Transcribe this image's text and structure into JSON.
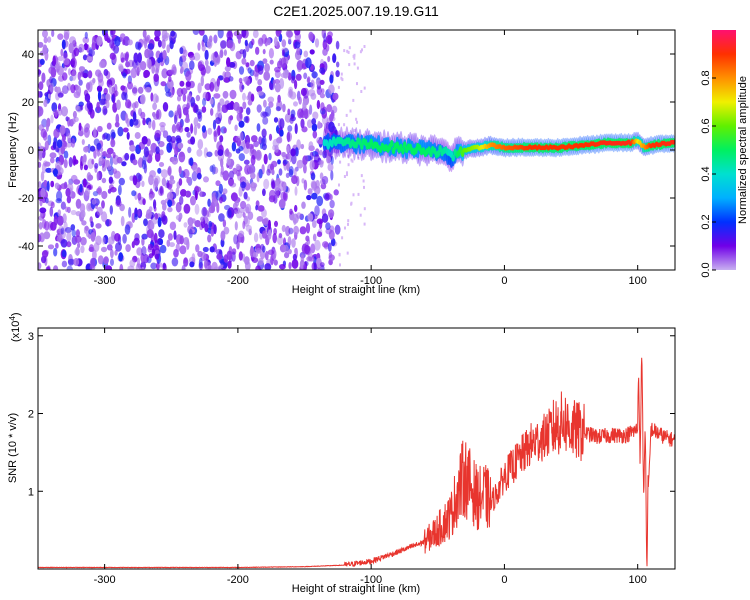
{
  "title": "C2E1.2025.007.19.19.G11",
  "colors": {
    "noise_purple": "#7a2df0",
    "noise_light": "#d8b8f8",
    "signal_red": "#e8352e",
    "snr_line": "#e8352e"
  },
  "spectrogram": {
    "xlabel": "Height of straight line (km)",
    "ylabel": "Frequency (Hz)",
    "xticks": [
      "-300",
      "-200",
      "-100",
      "0",
      "100"
    ],
    "yticks": [
      "40",
      "20",
      "0",
      "-20",
      "-40"
    ],
    "colorbar_label": "Normalized spectral amplitude",
    "colorbar_ticks": [
      "0.8",
      "0.6",
      "0.4",
      "0.2",
      "0.0"
    ],
    "colorbar_stops": [
      "#c8b0f0",
      "#7000e8",
      "#0030ff",
      "#00b0ff",
      "#00e0d0",
      "#00f060",
      "#60f000",
      "#f0f000",
      "#ff9000",
      "#ff3000",
      "#ff1070"
    ]
  },
  "snr": {
    "xlabel": "Height of straight line (km)",
    "ylabel": "SNR (10 * v/v)",
    "exponent_label": "(x10",
    "exponent_power": "4",
    "exponent_close": ")",
    "xticks": [
      "-300",
      "-200",
      "-100",
      "0",
      "100"
    ],
    "yticks": [
      "3",
      "2",
      "1"
    ]
  },
  "chart_data": [
    {
      "type": "heatmap",
      "title": "C2E1.2025.007.19.19.G11",
      "xlabel": "Height of straight line (km)",
      "ylabel": "Frequency (Hz)",
      "xlim": [
        -350,
        128
      ],
      "ylim": [
        -50,
        50
      ],
      "colorbar_label": "Normalized spectral amplitude",
      "colorbar_range": [
        0.0,
        1.0
      ],
      "noise_region_x": [
        -350,
        -125
      ],
      "signal_track": {
        "x": [
          -135,
          -120,
          -100,
          -80,
          -60,
          -45,
          -40,
          -35,
          -30,
          -20,
          -10,
          0,
          20,
          40,
          60,
          80,
          95,
          100,
          105,
          110,
          128
        ],
        "freq_hz": [
          3,
          3,
          2,
          1,
          0,
          -1,
          -3,
          -1,
          0,
          1,
          2,
          1,
          1,
          1,
          2,
          3,
          3,
          4,
          1,
          2,
          3
        ],
        "amplitude": [
          0.4,
          0.45,
          0.5,
          0.5,
          0.5,
          0.45,
          0.4,
          0.5,
          0.6,
          0.65,
          0.8,
          0.85,
          0.9,
          0.9,
          0.9,
          0.92,
          0.92,
          0.7,
          0.8,
          0.9,
          0.92
        ]
      }
    },
    {
      "type": "line",
      "xlabel": "Height of straight line (km)",
      "ylabel": "SNR (10 * v/v)",
      "xlim": [
        -350,
        128
      ],
      "ylim": [
        0,
        3.1
      ],
      "y_multiplier": "x10^4",
      "series": [
        {
          "x": [
            -350,
            -300,
            -200,
            -150,
            -120,
            -100,
            -80,
            -60,
            -50,
            -40,
            -35,
            -30,
            -25,
            -20,
            -15,
            -10,
            -5,
            0,
            10,
            20,
            30,
            40,
            45,
            50,
            60,
            70,
            80,
            90,
            95,
            100,
            103,
            105,
            107,
            110,
            115,
            120,
            128
          ],
          "values": [
            0.02,
            0.02,
            0.02,
            0.03,
            0.05,
            0.1,
            0.22,
            0.35,
            0.5,
            0.7,
            1.0,
            1.2,
            1.05,
            0.9,
            0.95,
            0.85,
            1.0,
            1.2,
            1.4,
            1.6,
            1.7,
            1.85,
            1.9,
            1.8,
            1.75,
            1.7,
            1.72,
            1.72,
            1.75,
            1.8,
            2.2,
            1.4,
            0.6,
            1.8,
            1.75,
            1.7,
            1.65
          ]
        }
      ]
    }
  ]
}
